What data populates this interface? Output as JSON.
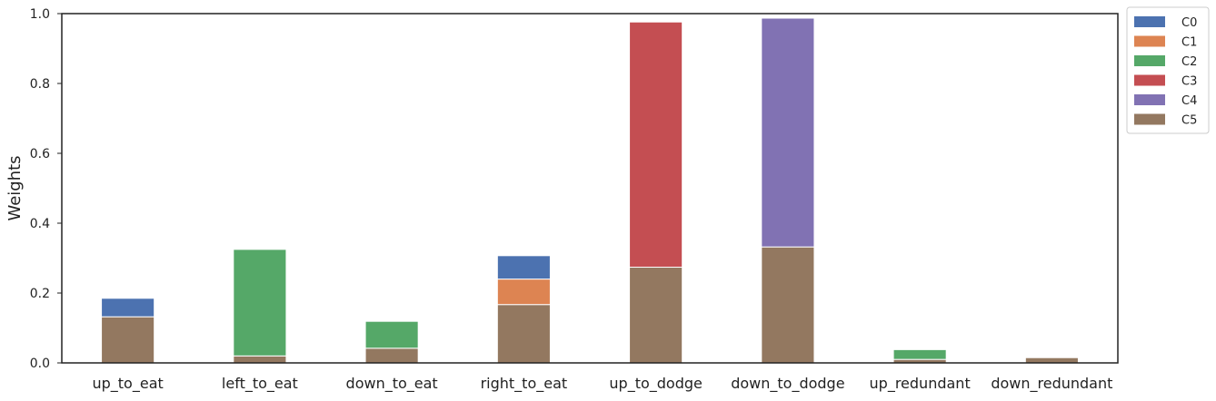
{
  "chart_data": {
    "type": "bar",
    "stacked": true,
    "title": "",
    "xlabel": "",
    "ylabel": "Weights",
    "ylim": [
      0,
      1.0
    ],
    "yticks": [
      "0.0",
      "0.2",
      "0.4",
      "0.6",
      "0.8",
      "1.0"
    ],
    "grid": false,
    "legend_position": "outside-top-right",
    "categories": [
      "up_to_eat",
      "left_to_eat",
      "down_to_eat",
      "right_to_eat",
      "up_to_dodge",
      "down_to_dodge",
      "up_redundant",
      "down_redundant"
    ],
    "stack_order": [
      "C5",
      "C1",
      "C4",
      "C3",
      "C2",
      "C0"
    ],
    "series": [
      {
        "name": "C0",
        "color": "#4C72B0",
        "values": [
          0.053,
          0,
          0,
          0.067,
          0,
          0,
          0,
          0
        ]
      },
      {
        "name": "C1",
        "color": "#DD8452",
        "values": [
          0,
          0,
          0,
          0.073,
          0,
          0,
          0,
          0
        ]
      },
      {
        "name": "C2",
        "color": "#55A868",
        "values": [
          0,
          0.305,
          0.077,
          0,
          0,
          0,
          0.028,
          0
        ]
      },
      {
        "name": "C3",
        "color": "#C44E52",
        "values": [
          0,
          0,
          0,
          0,
          0.702,
          0,
          0,
          0
        ]
      },
      {
        "name": "C4",
        "color": "#8172B3",
        "values": [
          0,
          0,
          0,
          0,
          0,
          0.655,
          0,
          0
        ]
      },
      {
        "name": "C5",
        "color": "#937860",
        "values": [
          0.132,
          0.02,
          0.042,
          0.167,
          0.274,
          0.332,
          0.01,
          0.015
        ]
      }
    ]
  }
}
